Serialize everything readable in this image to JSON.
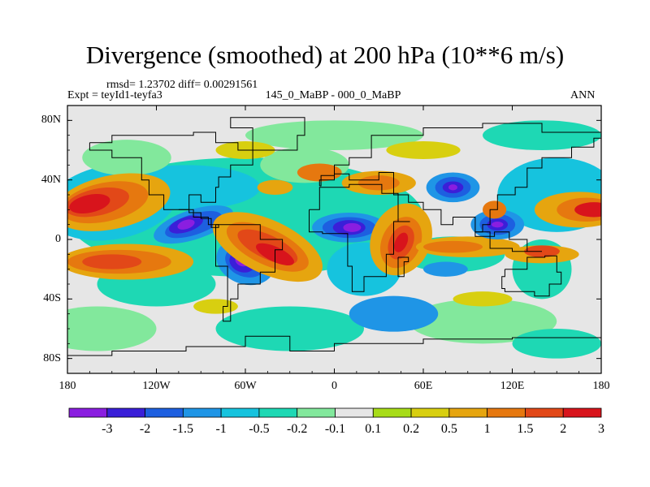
{
  "chart_data": {
    "type": "heatmap",
    "title": "Divergence (smoothed) at 200 hPa (10**6 m/s)",
    "stats_line": "rmsd= 1.23702 diff= 0.00291561",
    "expt_label": "Expt = teyId1-teyfa3",
    "subtitle": "145_0_MaBP - 000_0_MaBP",
    "season": "ANN",
    "x_ticks": [
      {
        "value": -180,
        "label": "180"
      },
      {
        "value": -120,
        "label": "120W"
      },
      {
        "value": -60,
        "label": "60W"
      },
      {
        "value": 0,
        "label": "0"
      },
      {
        "value": 60,
        "label": "60E"
      },
      {
        "value": 120,
        "label": "120E"
      },
      {
        "value": 180,
        "label": "180"
      }
    ],
    "y_ticks": [
      {
        "value": 80,
        "label": "80N"
      },
      {
        "value": 40,
        "label": "40N"
      },
      {
        "value": 0,
        "label": "0"
      },
      {
        "value": -40,
        "label": "40S"
      },
      {
        "value": -80,
        "label": "80S"
      }
    ],
    "xlim": [
      -180,
      180
    ],
    "ylim": [
      -90,
      90
    ],
    "colorbar": {
      "levels": [
        "-3",
        "-2",
        "-1.5",
        "-1",
        "-0.5",
        "-0.2",
        "-0.1",
        "0.1",
        "0.2",
        "0.5",
        "1",
        "1.5",
        "2",
        "3"
      ],
      "colors": [
        "#8a1ee0",
        "#3a1fd8",
        "#1d5fe0",
        "#1f95e6",
        "#16c3de",
        "#1ed8b4",
        "#82e89c",
        "#e6e6e6",
        "#a7dc18",
        "#d8cf10",
        "#e6a50f",
        "#e6780f",
        "#e24818",
        "#d8141c"
      ]
    },
    "features": [
      {
        "region": "N Pacific (30N, 150W)",
        "sign": "positive",
        "level": 3
      },
      {
        "region": "Central America (10N, 90W)",
        "sign": "negative",
        "level": -3
      },
      {
        "region": "Tropical Atlantic (10S, 30W)",
        "sign": "positive",
        "level": 3
      },
      {
        "region": "Amazon (15S, 60W)",
        "sign": "negative",
        "level": -3
      },
      {
        "region": "N Africa (5N, 10E)",
        "sign": "negative",
        "level": -3
      },
      {
        "region": "E Africa (0, 35E)",
        "sign": "positive",
        "level": 3
      },
      {
        "region": "Tibet (35N, 80E)",
        "sign": "negative",
        "level": -3
      },
      {
        "region": "SE Asia (10N, 110E)",
        "sign": "negative",
        "level": -3
      },
      {
        "region": "N Pacific (20N, 170E)",
        "sign": "positive",
        "level": 3
      },
      {
        "region": "S Pacific (25S, 150W)",
        "sign": "positive",
        "level": 2
      }
    ]
  }
}
